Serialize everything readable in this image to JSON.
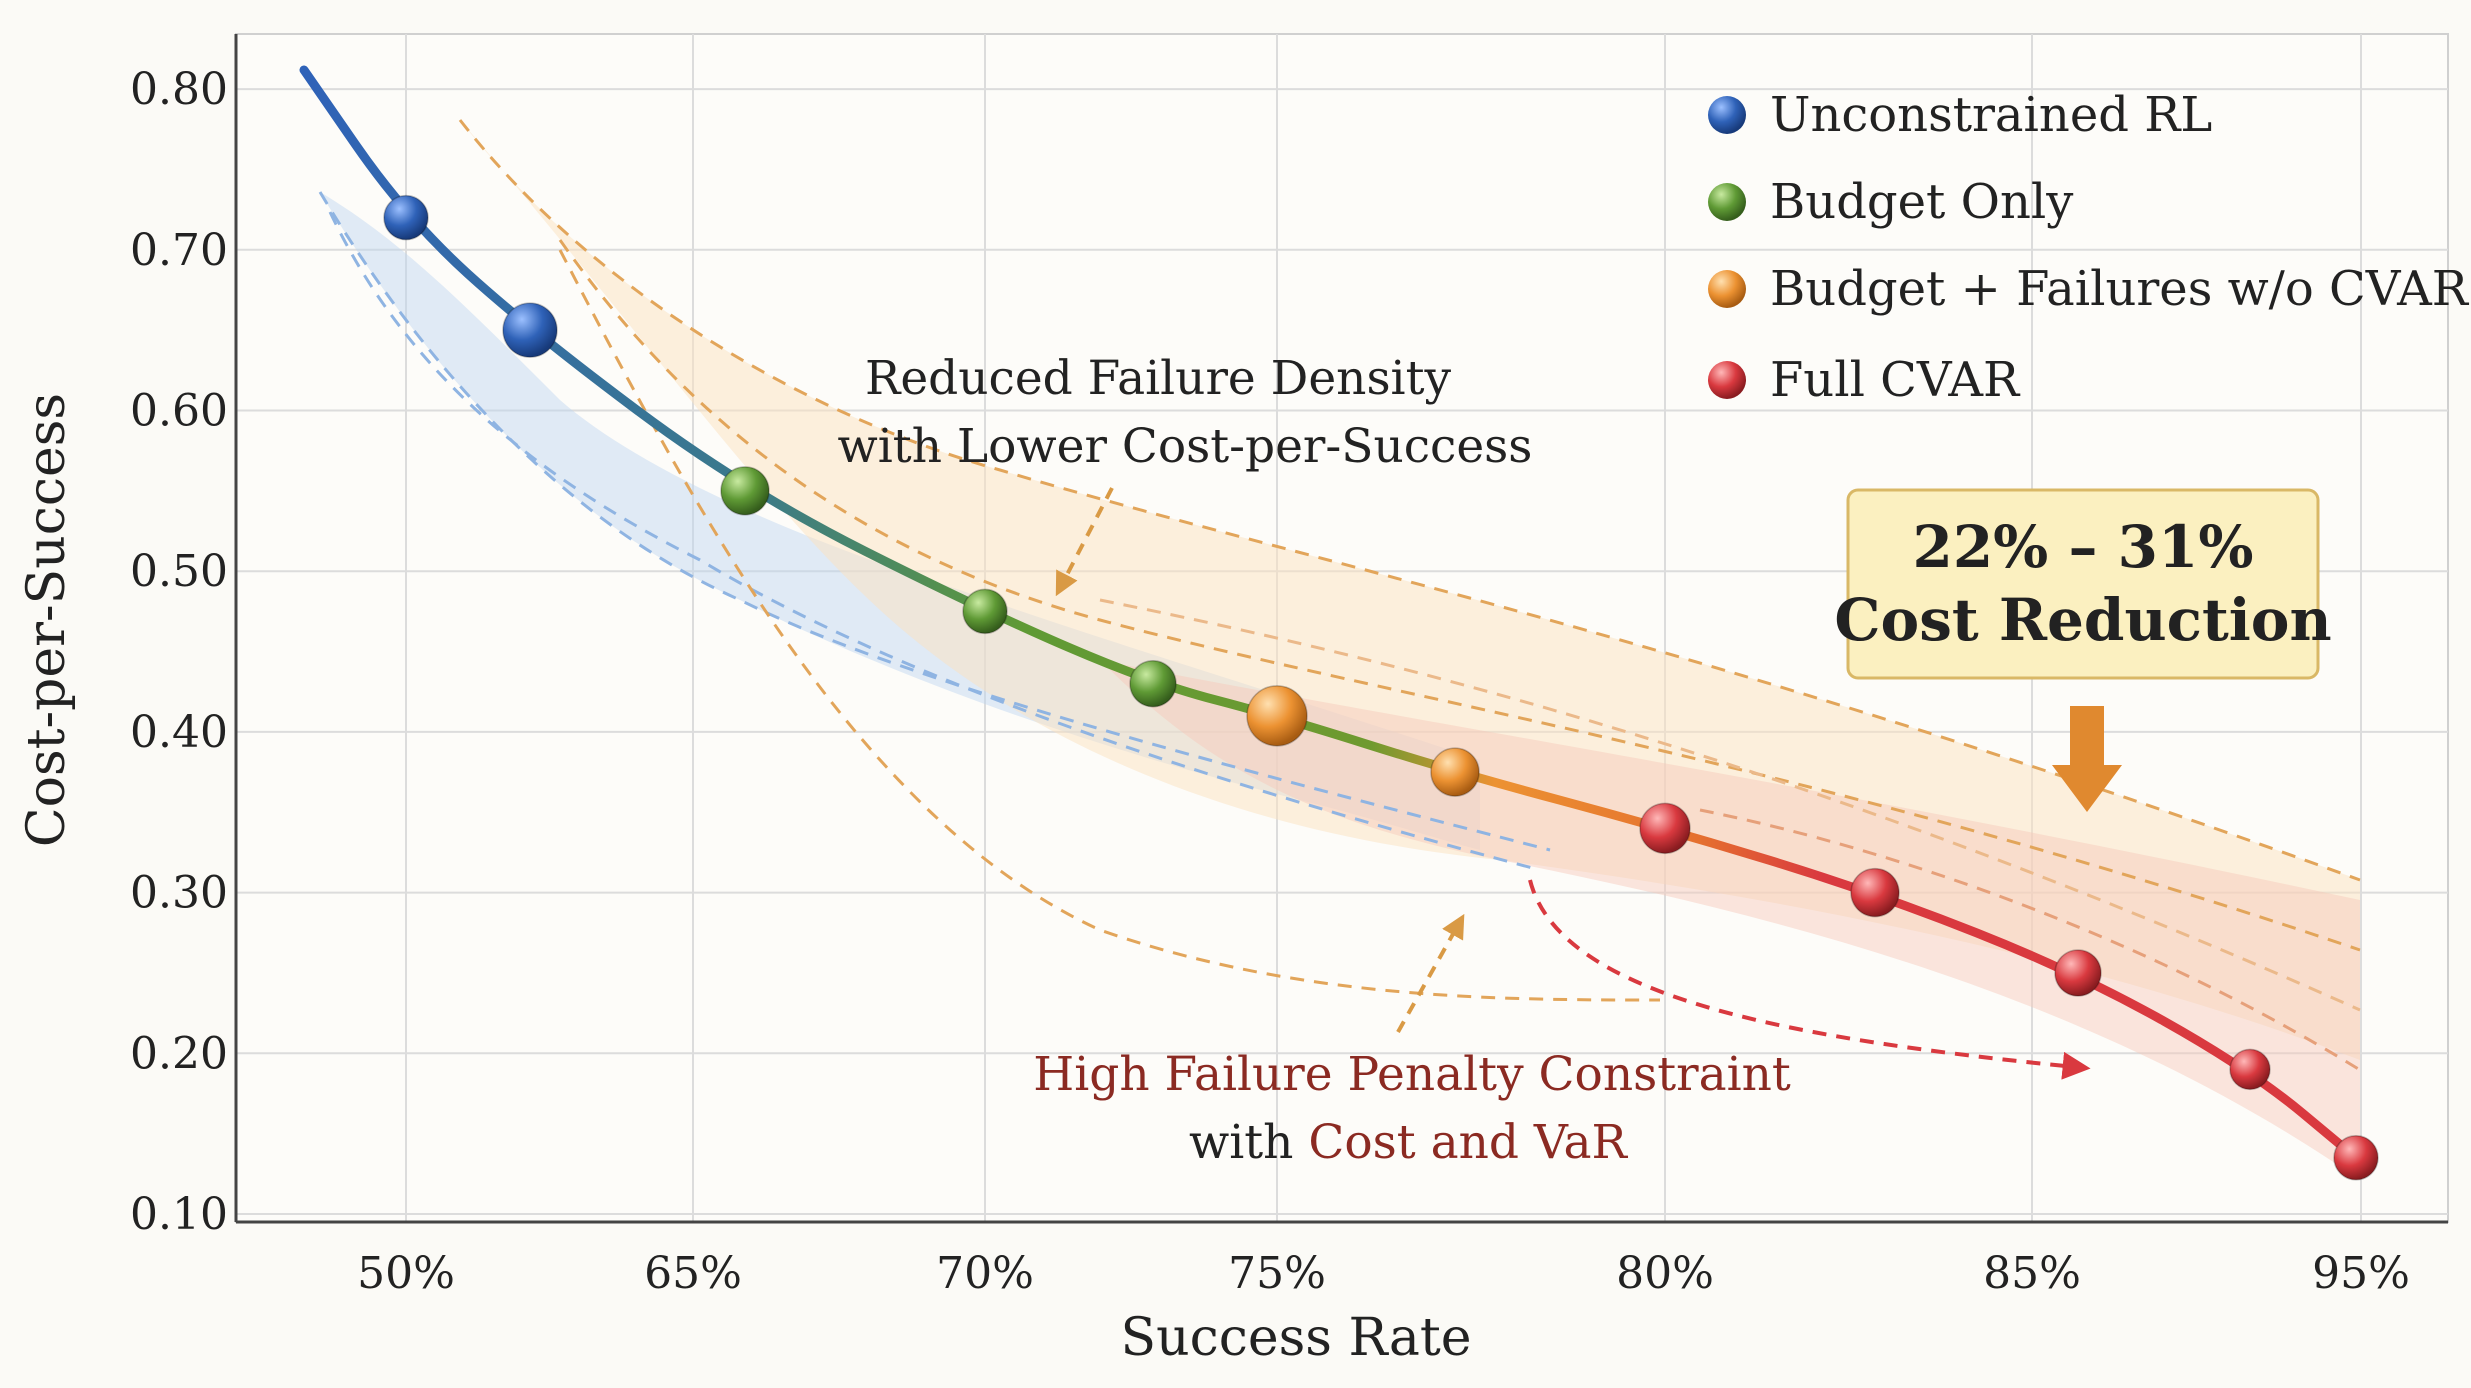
{
  "chart_data": {
    "type": "line",
    "xlabel": "Success Rate",
    "ylabel": "Cost-per-Success",
    "x_tick_labels": [
      "50%",
      "65%",
      "70%",
      "75%",
      "80%",
      "85%",
      "95%"
    ],
    "y_ticks": [
      0.1,
      0.2,
      0.3,
      0.4,
      0.5,
      0.6,
      0.7,
      0.8
    ],
    "y_tick_labels": [
      "0.10",
      "0.20",
      "0.30",
      "0.40",
      "0.50",
      "0.60",
      "0.70",
      "0.80"
    ],
    "ylim": [
      0.1,
      0.84
    ],
    "grid": true,
    "legend_position": "top-right",
    "series": [
      {
        "name": "Unconstrained RL",
        "color": "#2f62b8",
        "x": [
          "50%",
          "54%"
        ],
        "y": [
          0.72,
          0.65
        ]
      },
      {
        "name": "Budget Only",
        "color": "#5f9a35",
        "x": [
          "66%",
          "70%",
          "73%"
        ],
        "y": [
          0.55,
          0.475,
          0.43
        ]
      },
      {
        "name": "Budget + Failures w/o CVAR",
        "color": "#ec9232",
        "x": [
          "75%",
          "78%"
        ],
        "y": [
          0.41,
          0.375
        ]
      },
      {
        "name": "Full CVAR",
        "color": "#d9393f",
        "x": [
          "80%",
          "83%",
          "86%",
          "89%",
          "94%"
        ],
        "y": [
          0.34,
          0.3,
          0.25,
          0.19,
          0.135
        ]
      }
    ],
    "annotations": {
      "upper_line1": "Reduced Failure Density",
      "upper_line2": "with Lower Cost-per-Success",
      "lower_line1": "High Failure Penalty Constraint",
      "lower_line2_prefix": "with ",
      "lower_line2_highlight": "Cost and VaR",
      "callout_line1": "22% – 31%",
      "callout_line2": "Cost Reduction"
    },
    "colors": {
      "lower_annotation": "#8b2a22",
      "callout_fill": "#fbf0c0",
      "callout_border": "#d9b866",
      "arrow": "#e0892f",
      "grid": "#dcdcdc"
    }
  }
}
